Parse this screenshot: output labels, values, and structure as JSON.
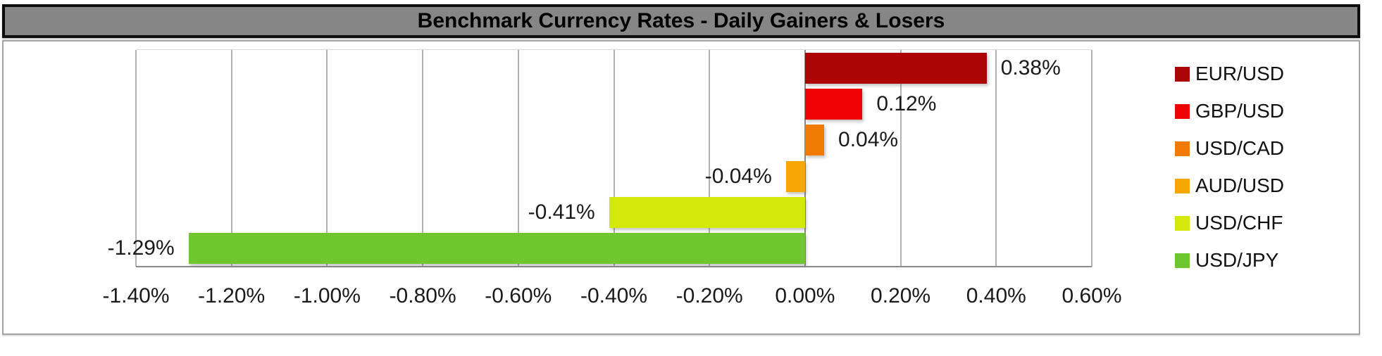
{
  "title": "Benchmark Currency Rates - Daily Gainers & Losers",
  "chart_data": {
    "type": "bar",
    "orientation": "horizontal",
    "title": "Benchmark Currency Rates - Daily Gainers & Losers",
    "xlabel": "",
    "ylabel": "",
    "categories": [
      "EUR/USD",
      "GBP/USD",
      "USD/CAD",
      "AUD/USD",
      "USD/CHF",
      "USD/JPY"
    ],
    "values": [
      0.38,
      0.12,
      0.04,
      -0.04,
      -0.41,
      -1.29
    ],
    "value_labels": [
      "0.38%",
      "0.12%",
      "0.04%",
      "-0.04%",
      "-0.41%",
      "-1.29%"
    ],
    "colors": [
      "#AB0505",
      "#EE0404",
      "#F07A04",
      "#F6A704",
      "#D3E80B",
      "#6FC72F"
    ],
    "xlim": [
      -1.4,
      0.6
    ],
    "x_ticks": [
      {
        "value": -1.4,
        "label": "-1.40%"
      },
      {
        "value": -1.2,
        "label": "-1.20%"
      },
      {
        "value": -1.0,
        "label": "-1.00%"
      },
      {
        "value": -0.8,
        "label": "-0.80%"
      },
      {
        "value": -0.6,
        "label": "-0.60%"
      },
      {
        "value": -0.4,
        "label": "-0.40%"
      },
      {
        "value": -0.2,
        "label": "-0.20%"
      },
      {
        "value": 0.0,
        "label": "0.00%"
      },
      {
        "value": 0.2,
        "label": "0.20%"
      },
      {
        "value": 0.4,
        "label": "0.40%"
      },
      {
        "value": 0.6,
        "label": "0.60%"
      }
    ],
    "grid": true,
    "plot_background": "#ffffff",
    "title_bar_background": "#868686",
    "legend": {
      "position": "right",
      "entries": [
        "EUR/USD",
        "GBP/USD",
        "USD/CAD",
        "AUD/USD",
        "USD/CHF",
        "USD/JPY"
      ]
    }
  }
}
